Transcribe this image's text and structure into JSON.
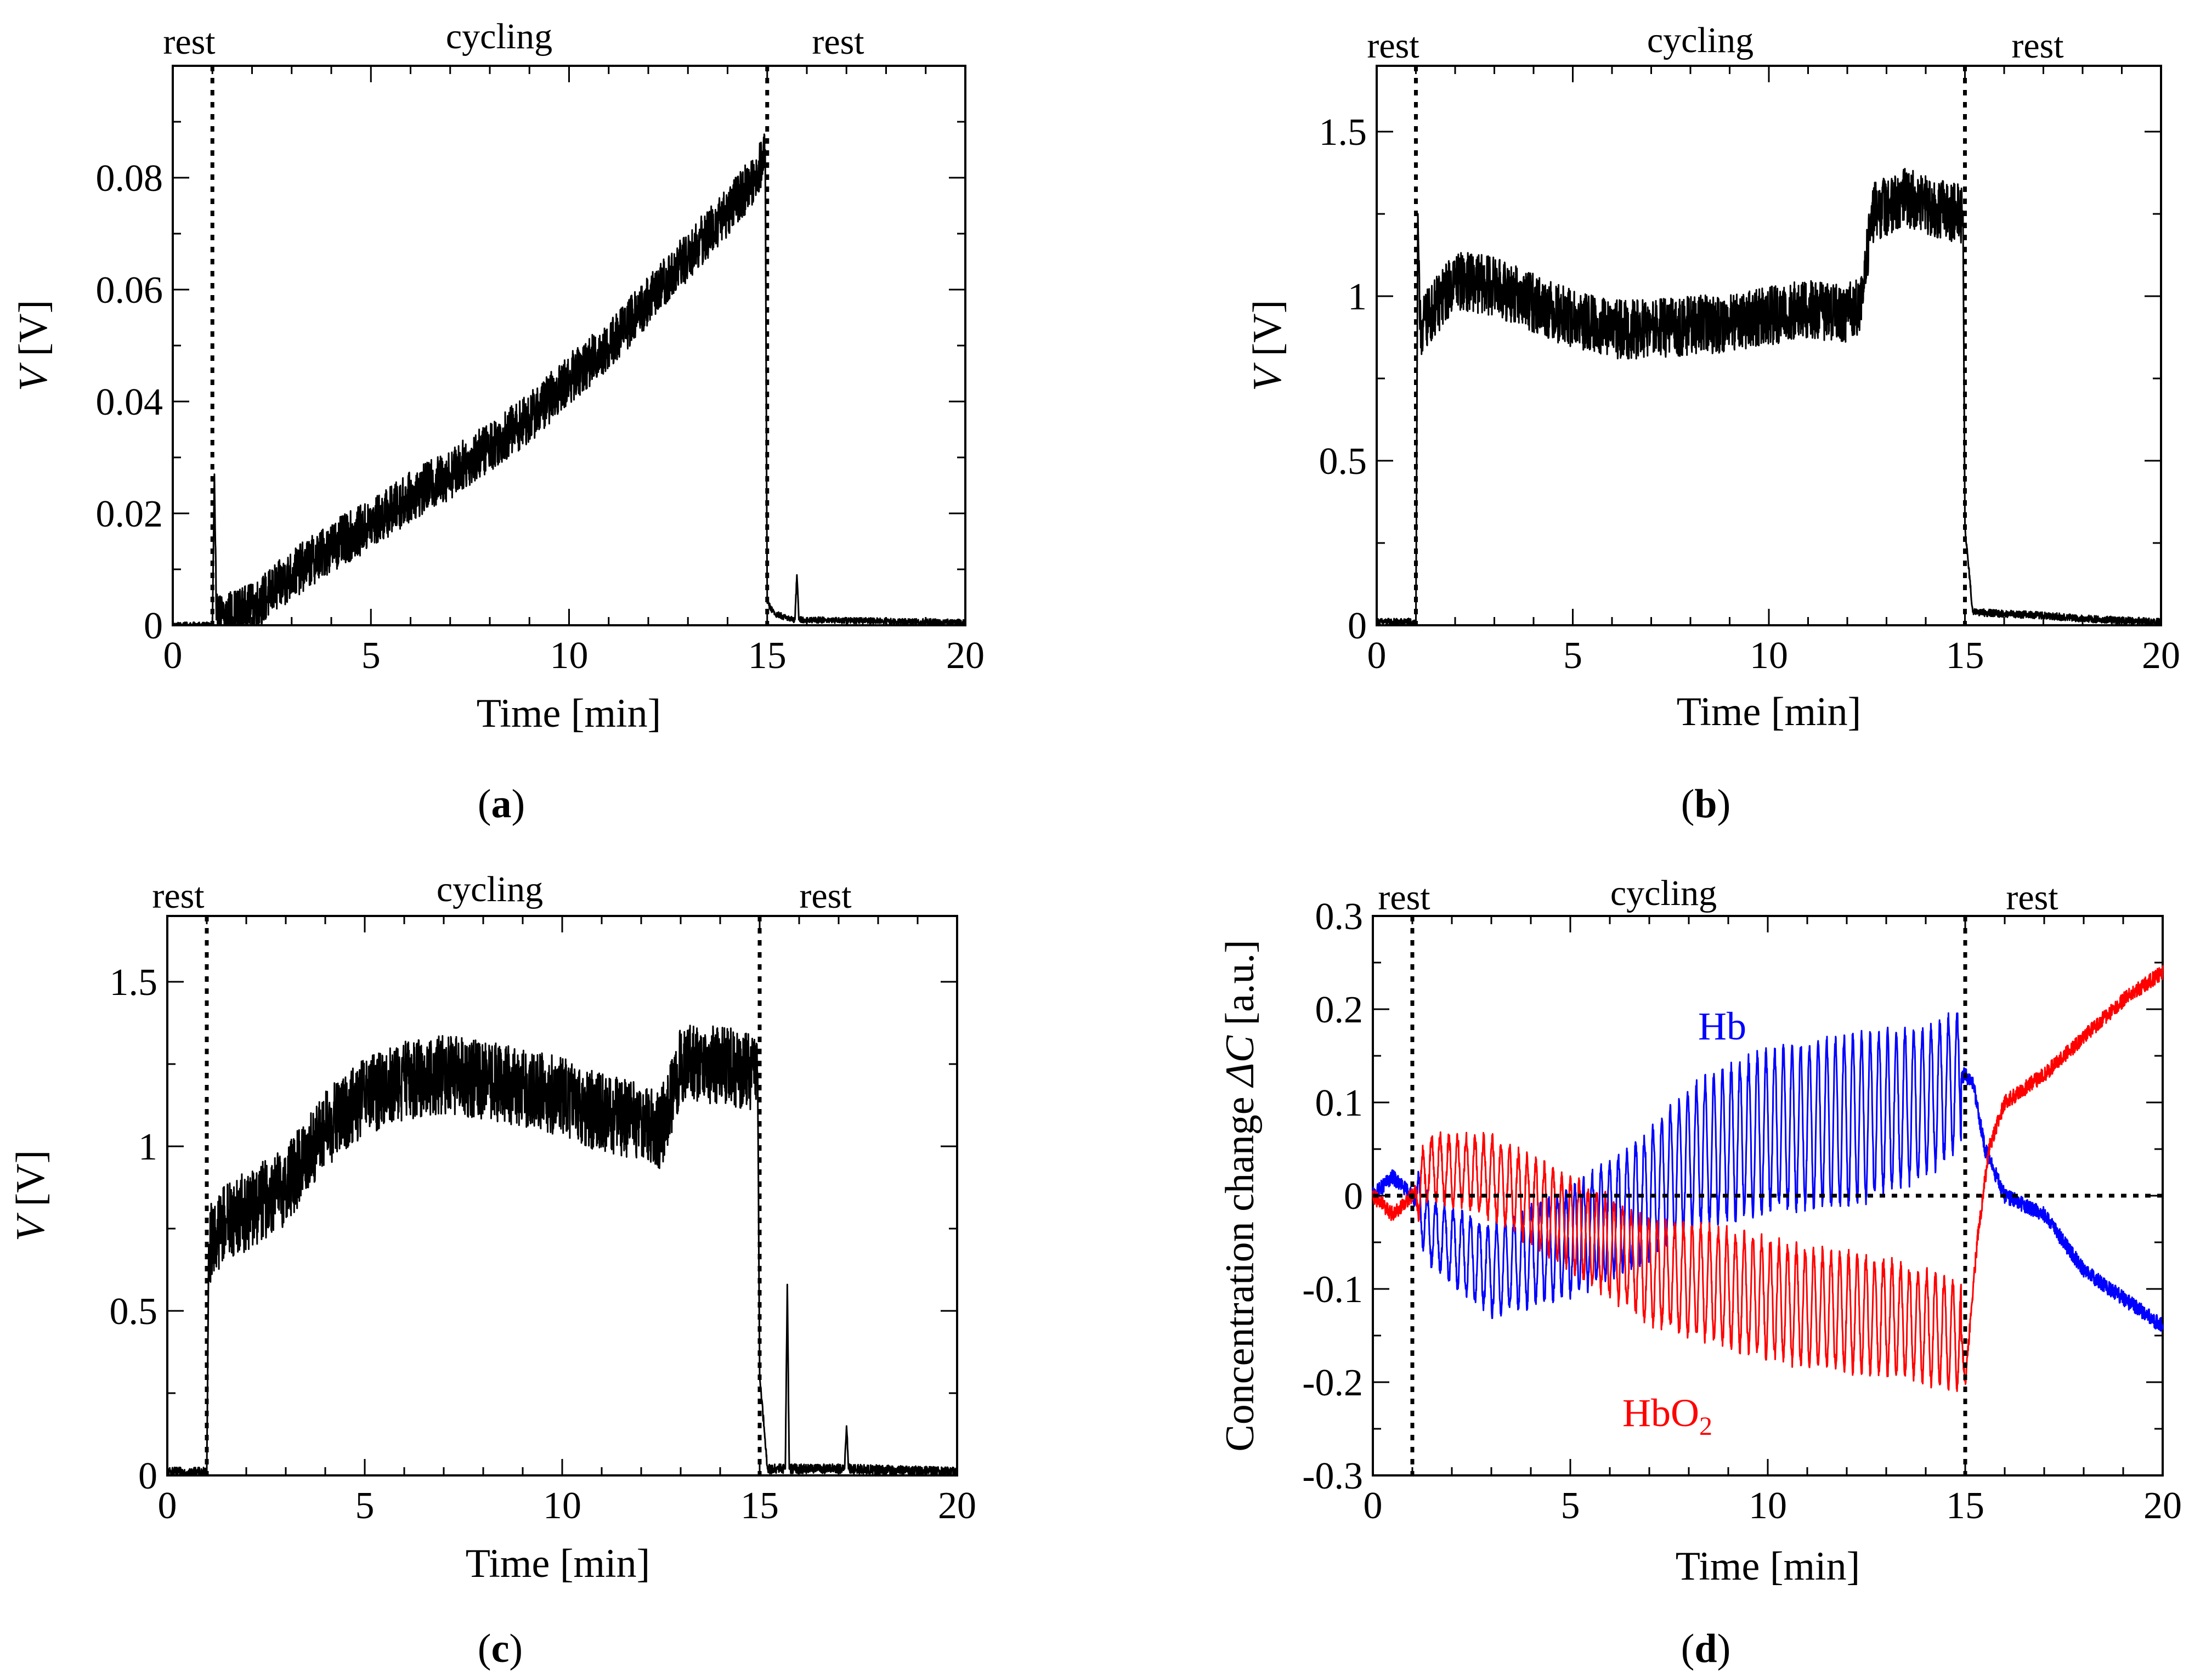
{
  "figure": {
    "panels": [
      {
        "id": "a",
        "caption": "a"
      },
      {
        "id": "b",
        "caption": "b"
      },
      {
        "id": "c",
        "caption": "c"
      },
      {
        "id": "d",
        "caption": "d"
      }
    ]
  },
  "colors": {
    "axis": "#000000",
    "trace": "#000000",
    "hb": "#0000ff",
    "hbo2": "#ff0000"
  },
  "chart_data": [
    {
      "panel": "a",
      "type": "line",
      "xlabel": "Time [min]",
      "ylabel_var": "V",
      "ylabel_unit": " [V]",
      "xlim": [
        0,
        20
      ],
      "ylim": [
        0,
        0.1
      ],
      "xticks": [
        0,
        5,
        10,
        15,
        20
      ],
      "xtick_labels": [
        "0",
        "5",
        "10",
        "15",
        "20"
      ],
      "yticks": [
        0,
        0.02,
        0.04,
        0.06,
        0.08
      ],
      "ytick_labels": [
        "0",
        "0.02",
        "0.04",
        "0.06",
        "0.08"
      ],
      "phase_lines_x": [
        1,
        15
      ],
      "annotations": [
        "rest",
        "cycling",
        "rest"
      ],
      "series": [
        {
          "name": "V",
          "color": "#000000",
          "noise": 0.0045,
          "points": [
            [
              0,
              0
            ],
            [
              1,
              0
            ],
            [
              1.05,
              0.027
            ],
            [
              1.1,
              0.001
            ],
            [
              2,
              0.003
            ],
            [
              3,
              0.009
            ],
            [
              4,
              0.014
            ],
            [
              5,
              0.018
            ],
            [
              6,
              0.023
            ],
            [
              7,
              0.027
            ],
            [
              8,
              0.032
            ],
            [
              9,
              0.037
            ],
            [
              10,
              0.044
            ],
            [
              11,
              0.05
            ],
            [
              12,
              0.058
            ],
            [
              13,
              0.066
            ],
            [
              14,
              0.074
            ],
            [
              14.7,
              0.08
            ],
            [
              14.95,
              0.085
            ],
            [
              15,
              0.004
            ],
            [
              15.2,
              0.002
            ],
            [
              15.7,
              0.001
            ],
            [
              15.75,
              0.009
            ],
            [
              15.8,
              0.001
            ],
            [
              20,
              0.0005
            ]
          ]
        }
      ]
    },
    {
      "panel": "b",
      "type": "line",
      "xlabel": "Time [min]",
      "ylabel_var": "V",
      "ylabel_unit": " [V]",
      "xlim": [
        0,
        20
      ],
      "ylim": [
        0,
        1.7
      ],
      "xticks": [
        0,
        5,
        10,
        15,
        20
      ],
      "xtick_labels": [
        "0",
        "5",
        "10",
        "15",
        "20"
      ],
      "yticks": [
        0,
        0.5,
        1,
        1.5
      ],
      "ytick_labels": [
        "0",
        "0.5",
        "1",
        "1.5"
      ],
      "phase_lines_x": [
        1,
        15
      ],
      "annotations": [
        "rest",
        "cycling",
        "rest"
      ],
      "series": [
        {
          "name": "V",
          "color": "#000000",
          "noise": 0.09,
          "points": [
            [
              0,
              0.01
            ],
            [
              1,
              0.01
            ],
            [
              1.05,
              1.25
            ],
            [
              1.1,
              0.9
            ],
            [
              2,
              1.05
            ],
            [
              3,
              1.03
            ],
            [
              4,
              0.98
            ],
            [
              5,
              0.93
            ],
            [
              6,
              0.9
            ],
            [
              7,
              0.9
            ],
            [
              8,
              0.91
            ],
            [
              9,
              0.92
            ],
            [
              10,
              0.94
            ],
            [
              11,
              0.96
            ],
            [
              12,
              0.95
            ],
            [
              12.4,
              0.98
            ],
            [
              12.6,
              1.25
            ],
            [
              13.5,
              1.3
            ],
            [
              14.5,
              1.26
            ],
            [
              14.95,
              1.25
            ],
            [
              15,
              0.3
            ],
            [
              15.2,
              0.04
            ],
            [
              16,
              0.035
            ],
            [
              17,
              0.03
            ],
            [
              18,
              0.02
            ],
            [
              19,
              0.015
            ],
            [
              20,
              0.01
            ]
          ]
        }
      ]
    },
    {
      "panel": "c",
      "type": "line",
      "xlabel": "Time [min]",
      "ylabel_var": "V",
      "ylabel_unit": " [V]",
      "xlim": [
        0,
        20
      ],
      "ylim": [
        0,
        1.7
      ],
      "xticks": [
        0,
        5,
        10,
        15,
        20
      ],
      "xtick_labels": [
        "0",
        "5",
        "10",
        "15",
        "20"
      ],
      "yticks": [
        0,
        0.5,
        1,
        1.5
      ],
      "ytick_labels": [
        "0",
        "0.5",
        "1",
        "1.5"
      ],
      "phase_lines_x": [
        1,
        15
      ],
      "annotations": [
        "rest",
        "cycling",
        "rest"
      ],
      "series": [
        {
          "name": "V",
          "color": "#000000",
          "noise": 0.12,
          "points": [
            [
              0,
              0.01
            ],
            [
              1,
              0.01
            ],
            [
              1.05,
              0.7
            ],
            [
              1.5,
              0.78
            ],
            [
              2,
              0.8
            ],
            [
              3,
              0.88
            ],
            [
              4,
              1.05
            ],
            [
              5,
              1.15
            ],
            [
              6,
              1.2
            ],
            [
              7,
              1.22
            ],
            [
              8,
              1.2
            ],
            [
              9,
              1.18
            ],
            [
              10,
              1.15
            ],
            [
              11,
              1.1
            ],
            [
              12,
              1.08
            ],
            [
              12.5,
              1.05
            ],
            [
              13,
              1.25
            ],
            [
              14,
              1.25
            ],
            [
              14.95,
              1.22
            ],
            [
              15,
              0.3
            ],
            [
              15.2,
              0.02
            ],
            [
              15.65,
              0.02
            ],
            [
              15.7,
              0.58
            ],
            [
              15.75,
              0.02
            ],
            [
              17.15,
              0.02
            ],
            [
              17.2,
              0.15
            ],
            [
              17.25,
              0.02
            ],
            [
              20,
              0.01
            ]
          ]
        }
      ]
    },
    {
      "panel": "d",
      "type": "line",
      "xlabel": "Time [min]",
      "ylabel_text": "Concentration change ",
      "ylabel_var": "ΔC",
      "ylabel_unit": " [a.u.]",
      "xlim": [
        0,
        20
      ],
      "ylim": [
        -0.3,
        0.3
      ],
      "xticks": [
        0,
        5,
        10,
        15,
        20
      ],
      "xtick_labels": [
        "0",
        "5",
        "10",
        "15",
        "20"
      ],
      "yticks": [
        -0.3,
        -0.2,
        -0.1,
        0,
        0.1,
        0.2,
        0.3
      ],
      "ytick_labels": [
        "-0.3",
        "-0.2",
        "-0.1",
        "0",
        "0.1",
        "0.2",
        "0.3"
      ],
      "phase_lines_x": [
        1,
        15
      ],
      "zero_line": 0,
      "annotations": [
        "rest",
        "cycling",
        "rest"
      ],
      "series": [
        {
          "name": "Hb",
          "label": "Hb",
          "color": "#0000ff",
          "noise": 0.008,
          "osc_start": 1.1,
          "osc_end": 14.9,
          "osc_period": 0.22,
          "mean": [
            [
              0,
              0.0
            ],
            [
              0.5,
              0.02
            ],
            [
              1,
              0.0
            ],
            [
              1.5,
              -0.04
            ],
            [
              3,
              -0.08
            ],
            [
              5,
              -0.05
            ],
            [
              7,
              0.0
            ],
            [
              8,
              0.04
            ],
            [
              10,
              0.07
            ],
            [
              12,
              0.08
            ],
            [
              14,
              0.1
            ],
            [
              15,
              0.13
            ],
            [
              15.2,
              0.12
            ],
            [
              15.5,
              0.05
            ],
            [
              16,
              0.0
            ],
            [
              17,
              -0.02
            ],
            [
              18,
              -0.08
            ],
            [
              19,
              -0.11
            ],
            [
              20,
              -0.14
            ]
          ],
          "amp": [
            [
              0,
              0
            ],
            [
              1.1,
              0.03
            ],
            [
              3,
              0.045
            ],
            [
              6,
              0.06
            ],
            [
              9,
              0.08
            ],
            [
              12,
              0.09
            ],
            [
              14.9,
              0.07
            ],
            [
              15,
              0
            ]
          ]
        },
        {
          "name": "HbO2",
          "label": "HbO",
          "label_sub": "2",
          "color": "#ff0000",
          "noise": 0.008,
          "osc_start": 1.1,
          "osc_end": 14.9,
          "osc_period": 0.22,
          "mean": [
            [
              0,
              0.0
            ],
            [
              0.5,
              -0.02
            ],
            [
              1,
              0.0
            ],
            [
              1.5,
              0.03
            ],
            [
              3,
              0.02
            ],
            [
              5,
              -0.03
            ],
            [
              7,
              -0.08
            ],
            [
              9,
              -0.1
            ],
            [
              11,
              -0.12
            ],
            [
              13,
              -0.13
            ],
            [
              14.9,
              -0.15
            ],
            [
              15,
              -0.2
            ],
            [
              15.3,
              -0.05
            ],
            [
              15.6,
              0.05
            ],
            [
              16,
              0.1
            ],
            [
              17,
              0.13
            ],
            [
              18,
              0.17
            ],
            [
              19,
              0.21
            ],
            [
              20,
              0.24
            ]
          ],
          "amp": [
            [
              0,
              0
            ],
            [
              1.1,
              0.03
            ],
            [
              3,
              0.04
            ],
            [
              6,
              0.05
            ],
            [
              9,
              0.06
            ],
            [
              12,
              0.06
            ],
            [
              14.9,
              0.055
            ],
            [
              15,
              0
            ]
          ]
        }
      ]
    }
  ]
}
